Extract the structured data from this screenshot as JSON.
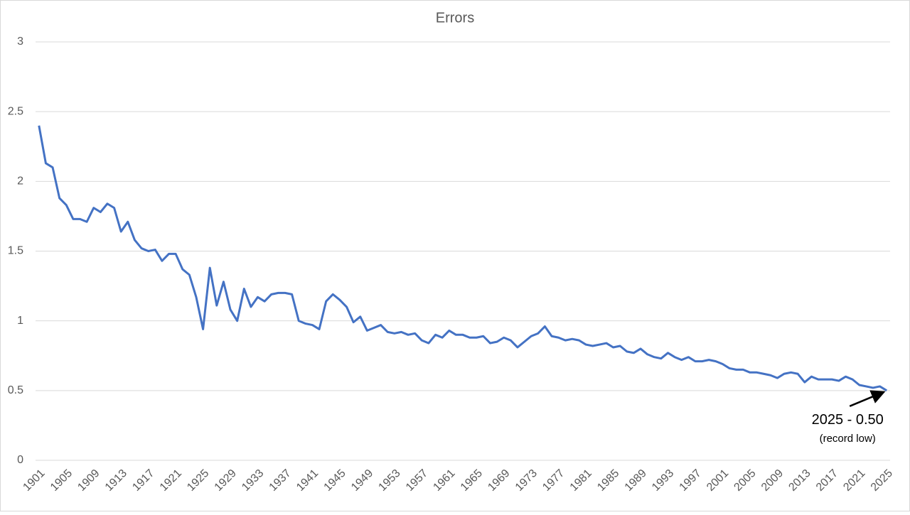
{
  "chart_data": {
    "type": "line",
    "title": "Errors",
    "x": [
      1901,
      1902,
      1903,
      1904,
      1905,
      1906,
      1907,
      1908,
      1909,
      1910,
      1911,
      1912,
      1913,
      1914,
      1915,
      1916,
      1917,
      1918,
      1919,
      1920,
      1921,
      1922,
      1923,
      1924,
      1925,
      1926,
      1927,
      1928,
      1929,
      1930,
      1931,
      1932,
      1933,
      1934,
      1935,
      1936,
      1937,
      1938,
      1939,
      1940,
      1941,
      1942,
      1943,
      1944,
      1945,
      1946,
      1947,
      1948,
      1949,
      1950,
      1951,
      1952,
      1953,
      1954,
      1955,
      1956,
      1957,
      1958,
      1959,
      1960,
      1961,
      1962,
      1963,
      1964,
      1965,
      1966,
      1967,
      1968,
      1969,
      1970,
      1971,
      1972,
      1973,
      1974,
      1975,
      1976,
      1977,
      1978,
      1979,
      1980,
      1981,
      1982,
      1983,
      1984,
      1985,
      1986,
      1987,
      1988,
      1989,
      1990,
      1991,
      1992,
      1993,
      1994,
      1995,
      1996,
      1997,
      1998,
      1999,
      2000,
      2001,
      2002,
      2003,
      2004,
      2005,
      2006,
      2007,
      2008,
      2009,
      2010,
      2011,
      2012,
      2013,
      2014,
      2015,
      2016,
      2017,
      2018,
      2019,
      2020,
      2021,
      2022,
      2023,
      2024,
      2025
    ],
    "series": [
      {
        "name": "Errors",
        "color": "#4472c4",
        "values": [
          2.4,
          2.13,
          2.1,
          1.88,
          1.83,
          1.73,
          1.73,
          1.71,
          1.81,
          1.78,
          1.84,
          1.81,
          1.64,
          1.71,
          1.58,
          1.52,
          1.5,
          1.51,
          1.43,
          1.48,
          1.48,
          1.37,
          1.33,
          1.17,
          0.94,
          1.38,
          1.11,
          1.28,
          1.08,
          1.0,
          1.23,
          1.1,
          1.17,
          1.14,
          1.19,
          1.2,
          1.2,
          1.19,
          1.0,
          0.98,
          0.97,
          0.94,
          1.14,
          1.19,
          1.15,
          1.1,
          0.99,
          1.03,
          0.93,
          0.95,
          0.97,
          0.92,
          0.91,
          0.92,
          0.9,
          0.91,
          0.86,
          0.84,
          0.9,
          0.88,
          0.93,
          0.9,
          0.9,
          0.88,
          0.88,
          0.89,
          0.84,
          0.85,
          0.88,
          0.86,
          0.81,
          0.85,
          0.89,
          0.91,
          0.96,
          0.89,
          0.88,
          0.86,
          0.87,
          0.86,
          0.83,
          0.82,
          0.83,
          0.84,
          0.81,
          0.82,
          0.78,
          0.77,
          0.8,
          0.76,
          0.74,
          0.73,
          0.77,
          0.74,
          0.72,
          0.74,
          0.71,
          0.71,
          0.72,
          0.71,
          0.69,
          0.66,
          0.65,
          0.65,
          0.63,
          0.63,
          0.62,
          0.61,
          0.59,
          0.62,
          0.63,
          0.62,
          0.56,
          0.6,
          0.58,
          0.58,
          0.58,
          0.57,
          0.6,
          0.58,
          0.54,
          0.53,
          0.52,
          0.53,
          0.5
        ]
      }
    ],
    "xlim": [
      1900.5,
      2025.5
    ],
    "xticks": [
      1901,
      1905,
      1909,
      1913,
      1917,
      1921,
      1925,
      1929,
      1933,
      1937,
      1941,
      1945,
      1949,
      1953,
      1957,
      1961,
      1965,
      1969,
      1973,
      1977,
      1981,
      1985,
      1989,
      1993,
      1997,
      2001,
      2005,
      2009,
      2013,
      2017,
      2021,
      2025
    ],
    "ylim": [
      0,
      3
    ],
    "yticks": [
      0,
      0.5,
      1,
      1.5,
      2,
      2.5,
      3
    ],
    "grid": true,
    "annotation": {
      "text": "2025 - 0.50",
      "note": "(record low)"
    }
  }
}
